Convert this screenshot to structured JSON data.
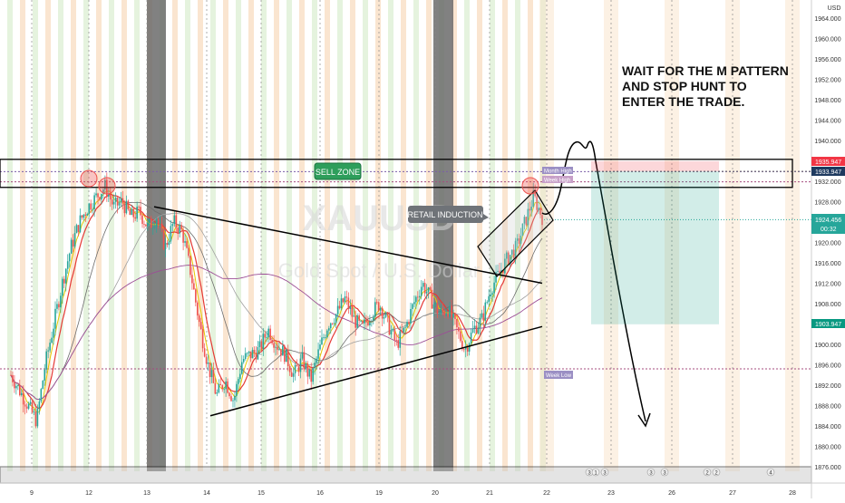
{
  "symbol": {
    "watermark_main": "XAUUSD",
    "watermark_sub": "Gold Spot / U.S. Dollar"
  },
  "currency_label": "USD",
  "annotations": {
    "sell_zone": "SELL ZONE",
    "retail_induction": "RETAIL INDUCTION",
    "note_lines": [
      "WAIT FOR THE M PATTERN",
      "AND STOP HUNT TO",
      "ENTER THE TRADE."
    ]
  },
  "level_labels": {
    "month_high": "Month High",
    "week_high": "Week High",
    "week_low": "Week Low"
  },
  "price_tags": {
    "stop": "1935.947",
    "entry": "1933.947",
    "current": "1924.456",
    "countdown": "00:32",
    "target": "1903.947"
  },
  "colors": {
    "up": "#26a69a",
    "down": "#ef5350",
    "session_orange": "#f9dfc4",
    "session_green": "#dff0d6",
    "weekend_gray": "#6b6b6b",
    "current_price": "#26a69a",
    "stop_tag": "#f23645",
    "target_tag": "#089981"
  },
  "event_badges": [
    "3",
    "1",
    "3",
    "3",
    "3",
    "2",
    "2",
    "4"
  ],
  "chart_data": {
    "type": "candlestick",
    "y_axis": {
      "ticks": [
        1876,
        1880,
        1884,
        1888,
        1892,
        1896,
        1900,
        1904,
        1908,
        1912,
        1916,
        1920,
        1924,
        1928,
        1932,
        1936,
        1940,
        1944,
        1948,
        1952,
        1956,
        1960,
        1964
      ],
      "ylim": [
        1874.5,
        1966.5
      ]
    },
    "x_axis": {
      "ticks": [
        "9",
        "12",
        "13",
        "14",
        "15",
        "16",
        "19",
        "20",
        "21",
        "22",
        "23",
        "26",
        "27",
        "28"
      ]
    },
    "price_path": [
      1894,
      1891,
      1888,
      1885,
      1896,
      1904,
      1912,
      1919,
      1924,
      1927,
      1929,
      1931,
      1927,
      1928,
      1925,
      1926,
      1923,
      1925,
      1919,
      1924,
      1922,
      1914,
      1904,
      1896,
      1890,
      1893,
      1889,
      1897,
      1898,
      1899,
      1903,
      1900,
      1898,
      1894,
      1897,
      1893,
      1899,
      1904,
      1906,
      1909,
      1905,
      1903,
      1906,
      1908,
      1904,
      1900,
      1903,
      1908,
      1912,
      1909,
      1906,
      1907,
      1903,
      1899,
      1903,
      1905,
      1911,
      1914,
      1917,
      1919,
      1924,
      1929,
      1925
    ],
    "levels": {
      "month_high": 1933.9,
      "week_high": 1931.9,
      "week_low": 1895.2
    },
    "zones": {
      "sell_zone": [
        1930.8,
        1936.3
      ]
    },
    "trade": {
      "stop": 1935.947,
      "entry": 1933.947,
      "target": 1903.947
    },
    "current_price": 1924.456,
    "trendlines": {
      "upper": [
        [
          1927,
          1912
        ]
      ],
      "lower": [
        [
          1886,
          1903.5
        ]
      ]
    },
    "projection": "M pattern above sell zone, then drop below 1886"
  }
}
